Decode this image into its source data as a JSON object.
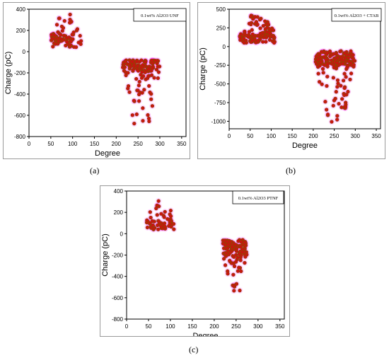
{
  "figure": {
    "captions": [
      "(a)",
      "(b)",
      "(c)"
    ]
  },
  "chart_data": [
    {
      "type": "scatter",
      "panel_label": "(a)",
      "legend": "0.1wt% Al2O3 UNF",
      "xlabel": "Degree",
      "ylabel": "Charge (pC)",
      "xlim": [
        0,
        360
      ],
      "ylim": [
        -800,
        400
      ],
      "xticks": [
        0,
        50,
        100,
        150,
        200,
        250,
        300,
        350
      ],
      "yticks": [
        400,
        200,
        0,
        -200,
        -400,
        -600,
        -800
      ],
      "marker_color": "#cc1111",
      "marker_edge": "#8b4a00",
      "highlight_color": "#ff00ff",
      "clusters": [
        {
          "x_range": [
            50,
            120
          ],
          "y_range": [
            40,
            160
          ],
          "y_max": 360,
          "n": 80
        },
        {
          "x_range": [
            215,
            300
          ],
          "y_range": [
            -180,
            -80
          ],
          "y_min": -690,
          "n": 140
        }
      ]
    },
    {
      "type": "scatter",
      "panel_label": "(b)",
      "legend": "0.1wt% Al2O3 + CTAB",
      "xlabel": "Degree",
      "ylabel": "Charge (pC)",
      "xlim": [
        0,
        360
      ],
      "ylim": [
        -1100,
        500
      ],
      "xticks": [
        0,
        50,
        100,
        150,
        200,
        250,
        300,
        350
      ],
      "yticks": [
        500,
        250,
        0,
        -250,
        -500,
        -750,
        -1000
      ],
      "marker_color": "#cc1111",
      "marker_edge": "#8b4a00",
      "highlight_color": "#ff00ff",
      "clusters": [
        {
          "x_range": [
            25,
            110
          ],
          "y_range": [
            50,
            200
          ],
          "y_max": 420,
          "n": 110
        },
        {
          "x_range": [
            205,
            300
          ],
          "y_range": [
            -250,
            -60
          ],
          "y_min": -1030,
          "n": 190
        }
      ]
    },
    {
      "type": "scatter",
      "panel_label": "(c)",
      "legend": "0.1wt% Al2O3 PTNF",
      "xlabel": "Degree",
      "ylabel": "Charge (pC)",
      "xlim": [
        0,
        360
      ],
      "ylim": [
        -800,
        400
      ],
      "xticks": [
        0,
        50,
        100,
        150,
        200,
        250,
        300,
        350
      ],
      "yticks": [
        400,
        200,
        0,
        -200,
        -400,
        -600,
        -800
      ],
      "marker_color": "#cc1111",
      "marker_edge": "#8b4a00",
      "highlight_color": "#ff00ff",
      "clusters": [
        {
          "x_range": [
            45,
            110
          ],
          "y_range": [
            40,
            120
          ],
          "y_max": 330,
          "n": 60
        },
        {
          "x_range": [
            220,
            275
          ],
          "y_range": [
            -200,
            -55
          ],
          "y_min": -545,
          "n": 120
        }
      ]
    }
  ]
}
